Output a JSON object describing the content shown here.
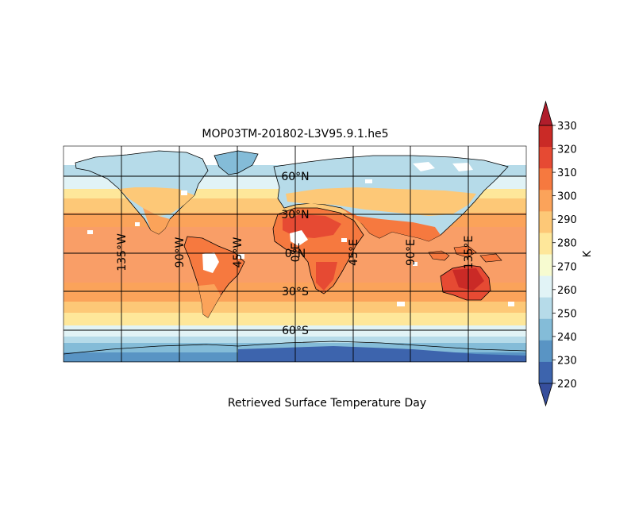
{
  "title": "MOP03TM-201802-L3V95.9.1.he5",
  "caption": "Retrieved Surface Temperature Day",
  "lat_labels": [
    "60°N",
    "30°N",
    "0°N",
    "30°S",
    "60°S"
  ],
  "lon_labels": [
    "135°W",
    "90°W",
    "45°W",
    "0°E",
    "45°E",
    "90°E",
    "135°E"
  ],
  "colorbar": {
    "unit": "K",
    "ticks": [
      "330",
      "320",
      "310",
      "300",
      "290",
      "280",
      "270",
      "260",
      "250",
      "240",
      "230",
      "220"
    ],
    "colors": [
      "#ca2a26",
      "#e64a33",
      "#f6793f",
      "#fba35a",
      "#fdc877",
      "#fee79a",
      "#f7fbd0",
      "#e1f3f6",
      "#b6dbe9",
      "#84bcd8",
      "#5994c4",
      "#3d64ad"
    ],
    "over_color": "#b01d2b",
    "under_color": "#364e9c"
  },
  "colors": {
    "land_outline": "#000000",
    "grid": "#000000",
    "missing": "#ffffff"
  }
}
